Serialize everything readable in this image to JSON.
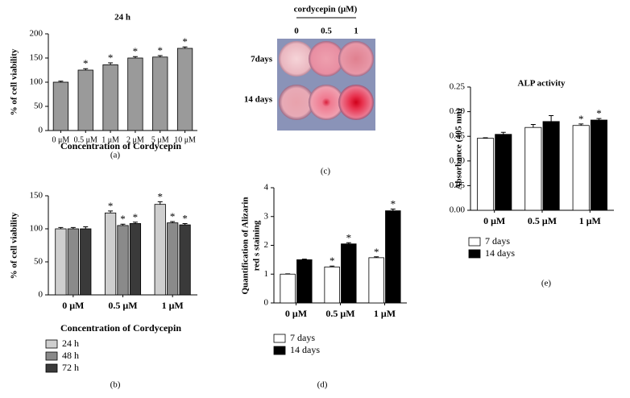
{
  "chart_data": [
    {
      "type": "bar",
      "title": "24 h",
      "x_label": "Concentration of Cordycepin",
      "y_label": "% of cell viability",
      "panel_label": "(a)",
      "categories": [
        "0 μM",
        "0.5 μM",
        "1 μM",
        "2 μM",
        "5 μM",
        "10 μM"
      ],
      "values": [
        100,
        125,
        136,
        150,
        152,
        170
      ],
      "errors": [
        2,
        3,
        4,
        3,
        3,
        3
      ],
      "significance": [
        null,
        "*",
        "*",
        "*",
        "*",
        "*"
      ],
      "color": "#9a9a9a",
      "ylim": [
        0,
        200
      ],
      "yticks": [
        0,
        50,
        100,
        150,
        200
      ]
    },
    {
      "type": "bar",
      "x_label": "Concentration of Cordycepin",
      "y_label": "% of cell viability",
      "panel_label": "(b)",
      "categories": [
        "0 μM",
        "0.5 μM",
        "1 μM"
      ],
      "series": [
        {
          "name": "24 h",
          "color": "#cfcfcf",
          "values": [
            100,
            124,
            137
          ],
          "errors": [
            2,
            3,
            4
          ],
          "significance": [
            null,
            "*",
            "*"
          ]
        },
        {
          "name": "48 h",
          "color": "#8a8a8a",
          "values": [
            100,
            105,
            109
          ],
          "errors": [
            2,
            2,
            2
          ],
          "significance": [
            null,
            "*",
            "*"
          ]
        },
        {
          "name": "72 h",
          "color": "#3a3a3a",
          "values": [
            100,
            108,
            106
          ],
          "errors": [
            3,
            2,
            2
          ],
          "significance": [
            null,
            "*",
            "*"
          ]
        }
      ],
      "ylim": [
        0,
        150
      ],
      "yticks": [
        0,
        50,
        100,
        150
      ],
      "legend": "bottom-left"
    },
    {
      "type": "bar",
      "y_label": [
        "Quantification of Alizarin",
        "red s staining"
      ],
      "panel_label": "(d)",
      "categories": [
        "0 μM",
        "0.5 μM",
        "1 μM"
      ],
      "series": [
        {
          "name": "7 days",
          "color": "#ffffff",
          "values": [
            1.0,
            1.25,
            1.57
          ],
          "errors": [
            0.01,
            0.03,
            0.03
          ],
          "significance": [
            null,
            "*",
            "*"
          ]
        },
        {
          "name": "14 days",
          "color": "#000000",
          "values": [
            1.5,
            2.05,
            3.2
          ],
          "errors": [
            0.02,
            0.04,
            0.06
          ],
          "significance": [
            null,
            "*",
            "*"
          ]
        }
      ],
      "ylim": [
        0,
        4
      ],
      "yticks": [
        0,
        1,
        2,
        3,
        4
      ],
      "legend": "bottom-left"
    },
    {
      "type": "bar",
      "title": "ALP activity",
      "y_label": "Absorbance (405 nm)",
      "panel_label": "(e)",
      "categories": [
        "0 μM",
        "0.5 μM",
        "1 μM"
      ],
      "series": [
        {
          "name": "7 days",
          "color": "#ffffff",
          "values": [
            0.146,
            0.168,
            0.172
          ],
          "errors": [
            0.001,
            0.006,
            0.003
          ],
          "significance": [
            null,
            null,
            "*"
          ]
        },
        {
          "name": "14 days",
          "color": "#000000",
          "values": [
            0.154,
            0.18,
            0.183
          ],
          "errors": [
            0.004,
            0.012,
            0.003
          ],
          "significance": [
            null,
            null,
            "*"
          ]
        }
      ],
      "ylim": [
        0,
        0.25
      ],
      "yticks": [
        {
          "value": 0,
          "label": "0.00"
        },
        0.05,
        {
          "value": 0.1,
          "label": "0.10"
        },
        0.15,
        {
          "value": 0.2,
          "label": "0.20"
        },
        0.25
      ],
      "legend": "bottom-left"
    }
  ],
  "image_panel": {
    "title": "cordycepin (μM)",
    "columns": [
      "0",
      "0.5",
      "1"
    ],
    "rows": [
      "7days",
      "14 days"
    ],
    "panel_label": "(c)"
  }
}
